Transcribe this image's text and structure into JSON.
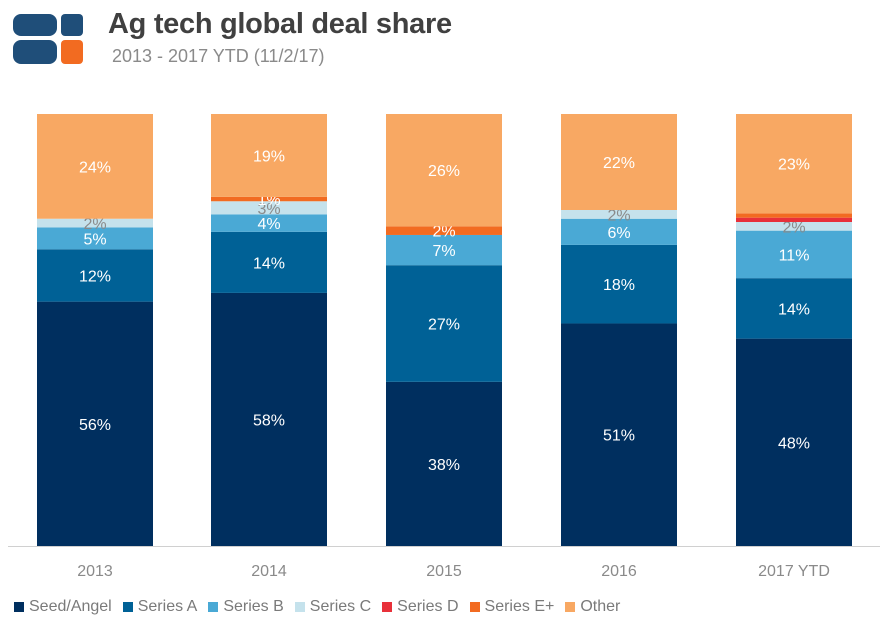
{
  "header": {
    "title": "Ag tech global deal share",
    "subtitle": "2013 - 2017 YTD (11/2/17)"
  },
  "logo": {
    "colors": {
      "dark": "#1f4e79",
      "orange": "#f26b21"
    }
  },
  "chart_data": {
    "type": "bar",
    "stacked": true,
    "title": "Ag tech global deal share",
    "subtitle": "2013 - 2017 YTD (11/2/17)",
    "categories": [
      "2013",
      "2014",
      "2015",
      "2016",
      "2017 YTD"
    ],
    "ylim": [
      0,
      100
    ],
    "legend_position": "bottom",
    "grid": false,
    "series": [
      {
        "name": "Seed/Angel",
        "color": "#002f5f",
        "label_color": "#ffffff",
        "values": [
          56,
          58,
          38,
          51,
          48
        ],
        "labels": [
          "56%",
          "58%",
          "38%",
          "51%",
          "48%"
        ]
      },
      {
        "name": "Series A",
        "color": "#006196",
        "label_color": "#ffffff",
        "values": [
          12,
          14,
          27,
          18,
          14
        ],
        "labels": [
          "12%",
          "14%",
          "27%",
          "18%",
          "14%"
        ]
      },
      {
        "name": "Series B",
        "color": "#4aa9d5",
        "label_color": "#ffffff",
        "values": [
          5,
          4,
          7,
          6,
          11
        ],
        "labels": [
          "5%",
          "4%",
          "7%",
          "6%",
          "11%"
        ]
      },
      {
        "name": "Series C",
        "color": "#c5e2ec",
        "label_color": "#8a8a8a",
        "values": [
          2,
          3,
          0,
          2,
          2
        ],
        "labels": [
          "2%",
          "3%",
          "",
          "2%",
          "2%"
        ]
      },
      {
        "name": "Series D",
        "color": "#e8313a",
        "label_color": "#ffffff",
        "values": [
          0,
          0,
          0,
          0,
          1
        ],
        "labels": [
          "",
          "",
          "",
          "",
          ""
        ]
      },
      {
        "name": "Series E+",
        "color": "#f26b21",
        "label_color": "#ffffff",
        "values": [
          0,
          1,
          2,
          0,
          1
        ],
        "labels": [
          "",
          "1%",
          "2%",
          "",
          ""
        ]
      },
      {
        "name": "Other",
        "color": "#f8a863",
        "label_color": "#ffffff",
        "values": [
          24,
          19,
          26,
          22,
          23
        ],
        "labels": [
          "24%",
          "19%",
          "26%",
          "22%",
          "23%"
        ]
      }
    ]
  }
}
